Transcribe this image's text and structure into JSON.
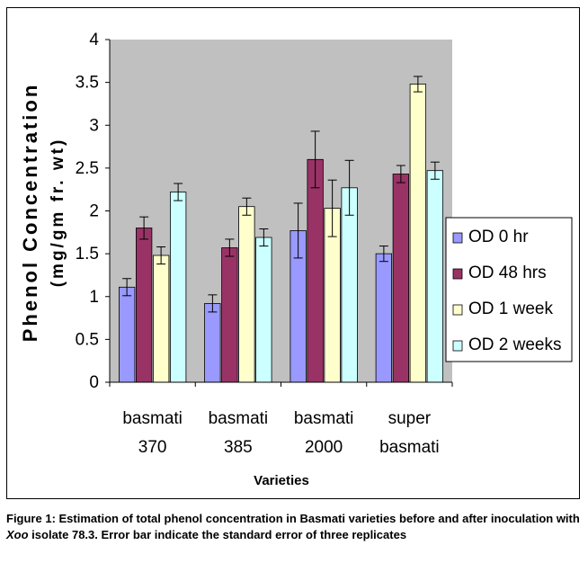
{
  "chart_data": {
    "type": "bar",
    "title": "",
    "xlabel": "Varieties",
    "ylabel_line1": "Phenol Concentration",
    "ylabel_line2": "(mg/gm fr. wt)",
    "ylim": [
      0,
      4
    ],
    "yticks": [
      "0",
      "0.5",
      "1",
      "1.5",
      "2",
      "2.5",
      "3",
      "3.5",
      "4"
    ],
    "grid": false,
    "plot_background": "#c0c0c0",
    "legend_position": "right",
    "categories": [
      {
        "line1": "basmati",
        "line2": "370"
      },
      {
        "line1": "basmati",
        "line2": "385"
      },
      {
        "line1": "basmati",
        "line2": "2000"
      },
      {
        "line1": "super",
        "line2": "basmati"
      }
    ],
    "series": [
      {
        "name": "OD 0 hr",
        "color": "#9999ff",
        "values": [
          1.11,
          0.92,
          1.77,
          1.5
        ],
        "errors": [
          0.1,
          0.1,
          0.32,
          0.09
        ]
      },
      {
        "name": "OD 48 hrs",
        "color": "#993366",
        "values": [
          1.8,
          1.57,
          2.6,
          2.43
        ],
        "errors": [
          0.13,
          0.1,
          0.33,
          0.1
        ]
      },
      {
        "name": "OD 1 week",
        "color": "#ffffcc",
        "values": [
          1.48,
          2.05,
          2.03,
          3.48
        ],
        "errors": [
          0.1,
          0.1,
          0.33,
          0.09
        ]
      },
      {
        "name": "OD 2 weeks",
        "color": "#ccffff",
        "values": [
          2.22,
          1.69,
          2.27,
          2.47
        ],
        "errors": [
          0.1,
          0.1,
          0.32,
          0.1
        ]
      }
    ]
  },
  "caption": {
    "part1": "Figure 1: Estimation of total phenol concentration in Basmati varieties before and after inoculation with ",
    "italic": "Xoo",
    "part2": " isolate 78.3. Error bar indicate the standard error of three replicates"
  }
}
